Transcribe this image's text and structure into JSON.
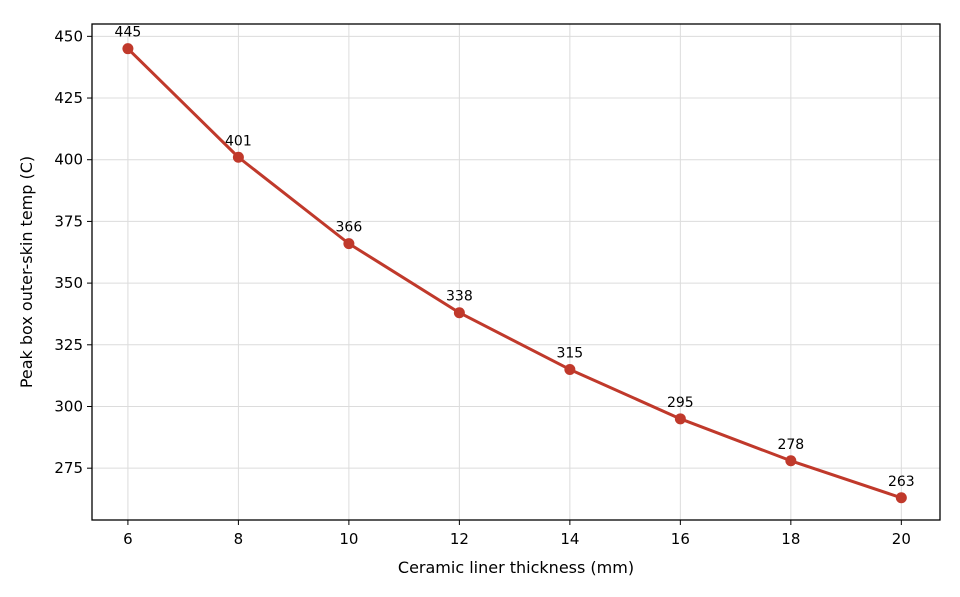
{
  "chart_data": {
    "type": "line",
    "title": "",
    "xlabel": "Ceramic liner thickness (mm)",
    "ylabel": "Peak box outer-skin temp (C)",
    "x": [
      6,
      8,
      10,
      12,
      14,
      16,
      18,
      20
    ],
    "series": [
      {
        "values": [
          445,
          401,
          366,
          338,
          315,
          295,
          278,
          263
        ],
        "color": "#c0392b"
      }
    ],
    "data_labels": [
      "445",
      "401",
      "366",
      "338",
      "315",
      "295",
      "278",
      "263"
    ],
    "xlim": [
      5.35,
      20.7
    ],
    "ylim": [
      254,
      455
    ],
    "xticks": [
      6,
      8,
      10,
      12,
      14,
      16,
      18,
      20
    ],
    "yticks": [
      275,
      300,
      325,
      350,
      375,
      400,
      425,
      450
    ],
    "grid": true,
    "legend": "none",
    "marker": "circle"
  }
}
